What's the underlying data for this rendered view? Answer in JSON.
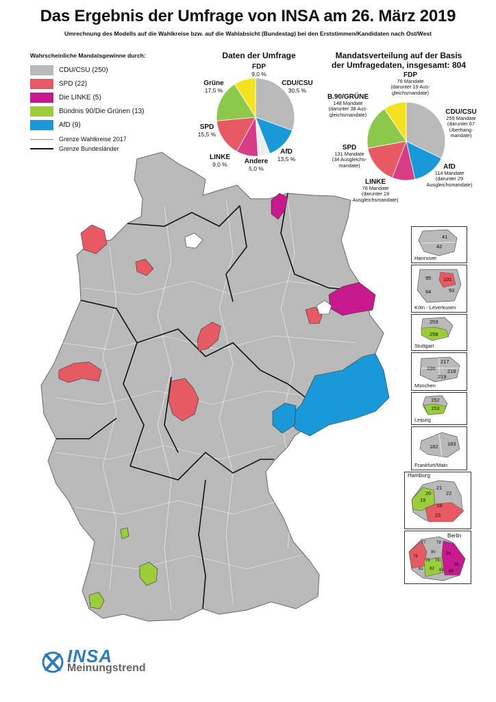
{
  "title": "Das Ergebnis der Umfrage von INSA am 26. März 2019",
  "subtitle": "Umrechnung des Modells auf die Wahlkreise bzw. auf die Wahlabsicht (Bundestag) bei den Erststimmen/Kandidaten nach Ost/West",
  "legend": {
    "heading": "Wahrscheinliche Mandatsgewinne durch:",
    "items": [
      {
        "label": "CDU/CSU (250)",
        "color": "#b9b9b9"
      },
      {
        "label": "SPD (22)",
        "color": "#e85a63"
      },
      {
        "label": "Die LINKE (5)",
        "color": "#c8198f"
      },
      {
        "label": "Bündnis 90/Die Grünen (13)",
        "color": "#9bcd3a"
      },
      {
        "label": "AfD (9)",
        "color": "#1a99d8"
      }
    ],
    "lines": [
      {
        "label": "Grenze Wahlkreise 2017"
      },
      {
        "label": "Grenze Bundesländer"
      }
    ]
  },
  "poll_chart": {
    "title": "Daten der Umfrage",
    "slices": [
      {
        "party": "CDU/CSU",
        "value": "30,5 %",
        "pct": 30.5,
        "color": "#b9b9b9"
      },
      {
        "party": "AfD",
        "value": "13,5 %",
        "pct": 13.5,
        "color": "#1a99d8"
      },
      {
        "party": "Andere",
        "value": "5,0 %",
        "pct": 5.0,
        "color": "#ededed"
      },
      {
        "party": "LINKE",
        "value": "9,0 %",
        "pct": 9.0,
        "color": "#d83c86"
      },
      {
        "party": "SPD",
        "value": "15,5 %",
        "pct": 15.5,
        "color": "#e85a63"
      },
      {
        "party": "Grüne",
        "value": "17,5 %",
        "pct": 17.5,
        "color": "#8cc84b"
      },
      {
        "party": "FDP",
        "value": "9,0 %",
        "pct": 9.0,
        "color": "#f5e21e"
      }
    ]
  },
  "seat_chart": {
    "title_line1": "Mandatsverteilung auf der Basis",
    "title_line2": "der Umfragedaten, insgesamt: 804",
    "slices": [
      {
        "party": "CDU/CSU",
        "seats": 259,
        "color": "#b9b9b9",
        "lines": [
          "259 Mandate",
          "(darunter 67",
          "Überhang-",
          "mandate)"
        ]
      },
      {
        "party": "AfD",
        "seats": 114,
        "color": "#1a99d8",
        "lines": [
          "114 Mandate",
          "(darunter 29",
          "Ausgleichsmandate)"
        ]
      },
      {
        "party": "LINKE",
        "seats": 76,
        "color": "#d83c86",
        "lines": [
          "76 Mandate",
          "(darunter 19",
          "Ausgleichsmandate)"
        ]
      },
      {
        "party": "SPD",
        "seats": 131,
        "color": "#e85a63",
        "lines": [
          "131 Mandate",
          "(34 Ausgleichs-",
          "mandate)"
        ]
      },
      {
        "party": "B.90/GRÜNE",
        "seats": 148,
        "color": "#8cc84b",
        "lines": [
          "148 Mandate",
          "(darunter 38 Aus-",
          "gleichsmandate)"
        ]
      },
      {
        "party": "FDP",
        "seats": 76,
        "color": "#f5e21e",
        "lines": [
          "76 Mandate",
          "(darunter 19 Aus-",
          "gleichsmandate)"
        ]
      }
    ]
  },
  "insets": [
    {
      "name": "Hannover",
      "numbers": [
        "41",
        "42"
      ]
    },
    {
      "name": "Köln - Leverkusen",
      "numbers": [
        "95",
        "101",
        "94",
        "93"
      ]
    },
    {
      "name": "Stuttgart",
      "numbers": [
        "259",
        "258"
      ]
    },
    {
      "name": "München",
      "numbers": [
        "217",
        "220",
        "218",
        "219"
      ]
    },
    {
      "name": "Leipzig",
      "numbers": [
        "152",
        "153"
      ]
    },
    {
      "name": "Frankfurt/Main",
      "numbers": [
        "182",
        "183"
      ]
    },
    {
      "name": "Hamburg",
      "numbers": [
        "21",
        "19",
        "20",
        "22",
        "18",
        "23"
      ]
    },
    {
      "name": "Berlin",
      "numbers": [
        "77",
        "78",
        "79",
        "80",
        "75",
        "76",
        "84",
        "81",
        "82",
        "83",
        "86",
        "85"
      ]
    }
  ],
  "logo": {
    "word": "INSA",
    "sub": "Meinungstrend"
  }
}
